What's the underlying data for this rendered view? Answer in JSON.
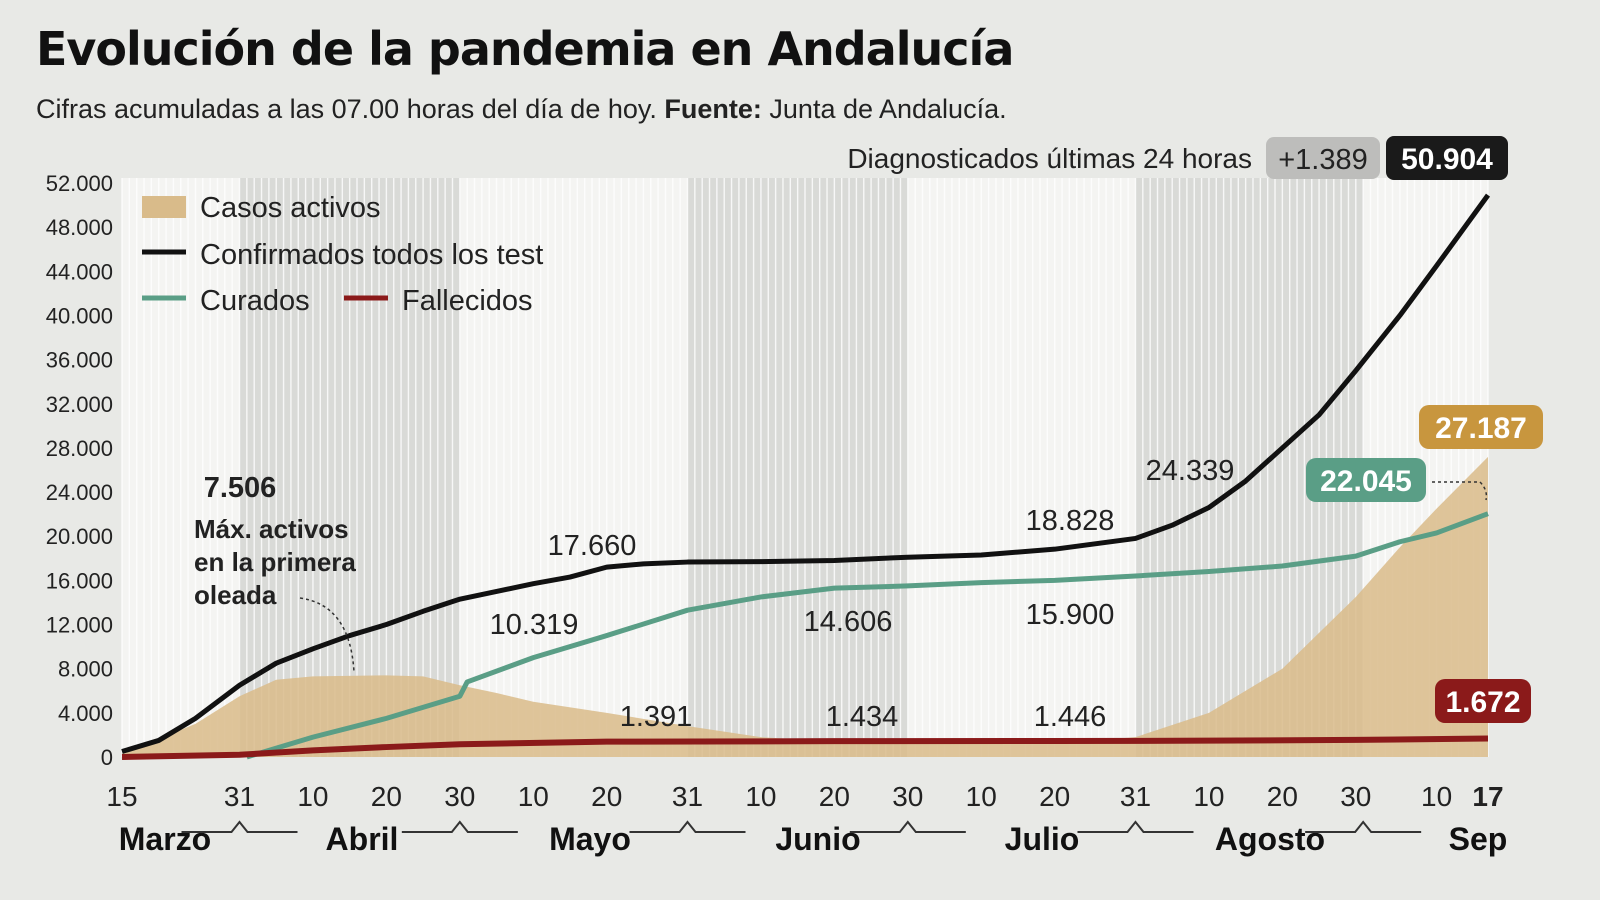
{
  "chart_data": {
    "type": "area",
    "title": "Evolución de la pandemia en Andalucía",
    "subtitle": "Cifras acumuladas a las 07.00 horas del día de hoy.",
    "source_label": "Fuente:",
    "source": "Junta de Andalucía.",
    "header_label": "Diagnosticados últimas 24 horas",
    "header_delta": "+1.389",
    "header_total": "50.904",
    "ylim": [
      0,
      52000
    ],
    "yticks": [
      "0",
      "4.000",
      "8.000",
      "12.000",
      "16.000",
      "20.000",
      "24.000",
      "28.000",
      "32.000",
      "36.000",
      "40.000",
      "44.000",
      "48.000",
      "52.000"
    ],
    "xrange": [
      "2020-03-15",
      "2020-09-17"
    ],
    "xticks": [
      [
        "03-15",
        "15"
      ],
      [
        "03-31",
        "31"
      ],
      [
        "04-10",
        "10"
      ],
      [
        "04-20",
        "20"
      ],
      [
        "04-30",
        "30"
      ],
      [
        "05-10",
        "10"
      ],
      [
        "05-20",
        "20"
      ],
      [
        "05-31",
        "31"
      ],
      [
        "06-10",
        "10"
      ],
      [
        "06-20",
        "20"
      ],
      [
        "06-30",
        "30"
      ],
      [
        "07-10",
        "10"
      ],
      [
        "07-20",
        "20"
      ],
      [
        "07-31",
        "31"
      ],
      [
        "08-10",
        "10"
      ],
      [
        "08-20",
        "20"
      ],
      [
        "08-30",
        "30"
      ],
      [
        "09-10",
        "10"
      ],
      [
        "09-17",
        "17"
      ]
    ],
    "months": [
      "Marzo",
      "Abril",
      "Mayo",
      "Junio",
      "Julio",
      "Agosto",
      "Sep"
    ],
    "grid": true,
    "legend_placement": "top-left",
    "series": [
      {
        "name": "Casos activos",
        "kind": "area",
        "color": "#d9bb8a",
        "points": [
          [
            "03-15",
            300
          ],
          [
            "03-25",
            3000
          ],
          [
            "03-31",
            5500
          ],
          [
            "04-05",
            7000
          ],
          [
            "04-10",
            7300
          ],
          [
            "04-20",
            7400
          ],
          [
            "04-25",
            7300
          ],
          [
            "04-30",
            6500
          ],
          [
            "05-05",
            5800
          ],
          [
            "05-10",
            5000
          ],
          [
            "05-20",
            4000
          ],
          [
            "05-31",
            2800
          ],
          [
            "06-10",
            1800
          ],
          [
            "06-20",
            1400
          ],
          [
            "06-30",
            1300
          ],
          [
            "07-10",
            1200
          ],
          [
            "07-20",
            1200
          ],
          [
            "07-31",
            1800
          ],
          [
            "08-10",
            4000
          ],
          [
            "08-20",
            8000
          ],
          [
            "08-30",
            14500
          ],
          [
            "09-05",
            19000
          ],
          [
            "09-10",
            22500
          ],
          [
            "09-17",
            27187
          ]
        ]
      },
      {
        "name": "Confirmados todos los test",
        "kind": "line",
        "color": "#111111",
        "points": [
          [
            "03-15",
            500
          ],
          [
            "03-20",
            1500
          ],
          [
            "03-25",
            3500
          ],
          [
            "03-31",
            6500
          ],
          [
            "04-05",
            8500
          ],
          [
            "04-10",
            9800
          ],
          [
            "04-15",
            11000
          ],
          [
            "04-20",
            12000
          ],
          [
            "04-25",
            13200
          ],
          [
            "04-30",
            14300
          ],
          [
            "05-05",
            15000
          ],
          [
            "05-10",
            15700
          ],
          [
            "05-15",
            16300
          ],
          [
            "05-20",
            17200
          ],
          [
            "05-25",
            17500
          ],
          [
            "05-31",
            17660
          ],
          [
            "06-10",
            17700
          ],
          [
            "06-20",
            17800
          ],
          [
            "06-30",
            18100
          ],
          [
            "07-10",
            18300
          ],
          [
            "07-20",
            18828
          ],
          [
            "07-31",
            19800
          ],
          [
            "08-05",
            21000
          ],
          [
            "08-10",
            22600
          ],
          [
            "08-15",
            25000
          ],
          [
            "08-20",
            28000
          ],
          [
            "08-25",
            31000
          ],
          [
            "08-30",
            35000
          ],
          [
            "09-05",
            40000
          ],
          [
            "09-10",
            44500
          ],
          [
            "09-17",
            50904
          ]
        ]
      },
      {
        "name": "Curados",
        "kind": "line",
        "color": "#5a9e86",
        "points": [
          [
            "04-01",
            0
          ],
          [
            "04-10",
            1800
          ],
          [
            "04-20",
            3500
          ],
          [
            "04-30",
            5500
          ],
          [
            "05-01",
            6800
          ],
          [
            "05-10",
            9000
          ],
          [
            "05-20",
            11000
          ],
          [
            "05-31",
            13300
          ],
          [
            "06-10",
            14500
          ],
          [
            "06-20",
            15300
          ],
          [
            "06-30",
            15500
          ],
          [
            "07-10",
            15800
          ],
          [
            "07-20",
            16000
          ],
          [
            "07-31",
            16400
          ],
          [
            "08-10",
            16800
          ],
          [
            "08-20",
            17300
          ],
          [
            "08-30",
            18200
          ],
          [
            "09-05",
            19500
          ],
          [
            "09-10",
            20300
          ],
          [
            "09-17",
            22045
          ]
        ]
      },
      {
        "name": "Fallecidos",
        "kind": "line",
        "color": "#8b1a1a",
        "points": [
          [
            "03-15",
            0
          ],
          [
            "03-31",
            200
          ],
          [
            "04-10",
            600
          ],
          [
            "04-20",
            900
          ],
          [
            "04-30",
            1150
          ],
          [
            "05-20",
            1391
          ],
          [
            "06-20",
            1434
          ],
          [
            "07-20",
            1446
          ],
          [
            "08-10",
            1480
          ],
          [
            "08-30",
            1550
          ],
          [
            "09-17",
            1672
          ]
        ]
      }
    ],
    "annotations": [
      {
        "text": "7.506",
        "date": "04-13",
        "value": 7506,
        "note": "Máx. activos en la primera oleada"
      },
      {
        "text": "17.660",
        "date": "05-21",
        "value": 17660
      },
      {
        "text": "10.319",
        "date": "05-05",
        "value": 10319
      },
      {
        "text": "1.391",
        "date": "05-24",
        "value": 1391
      },
      {
        "text": "14.606",
        "date": "06-17",
        "value": 14606
      },
      {
        "text": "1.434",
        "date": "06-21",
        "value": 1434
      },
      {
        "text": "18.828",
        "date": "07-21",
        "value": 18828
      },
      {
        "text": "15.900",
        "date": "07-21",
        "value": 15900
      },
      {
        "text": "1.446",
        "date": "07-20",
        "value": 1446
      },
      {
        "text": "24.339",
        "date": "08-07",
        "value": 24339
      }
    ],
    "end_labels": [
      {
        "text": "27.187",
        "color": "#c8963e"
      },
      {
        "text": "22.045",
        "color": "#5a9e86"
      },
      {
        "text": "1.672",
        "color": "#8b1a1a"
      }
    ]
  }
}
